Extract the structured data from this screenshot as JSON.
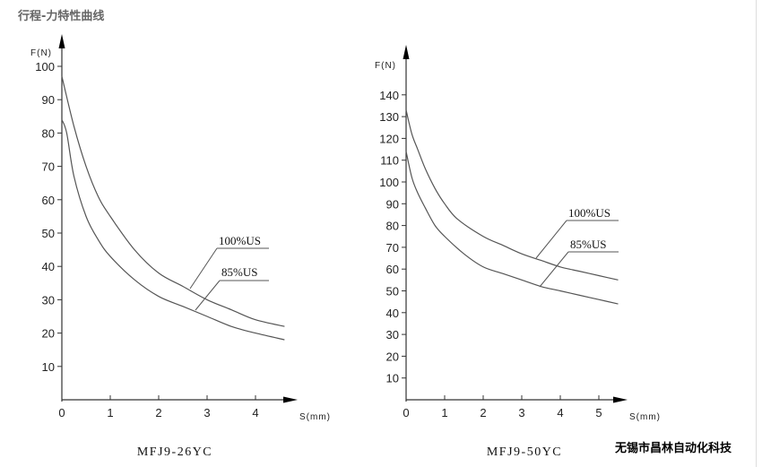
{
  "page_title": "行程-力特性曲线",
  "company": "无锡市昌林自动化科技",
  "chart_data": [
    {
      "type": "line",
      "caption": "MFJ9-26YC",
      "xlabel": "S(mm)",
      "ylabel": "F(N)",
      "xlim": [
        0,
        4.6
      ],
      "ylim": [
        0,
        100
      ],
      "xticks": [
        "0",
        "1",
        "2",
        "3",
        "4"
      ],
      "yticks": [
        "10",
        "20",
        "30",
        "40",
        "50",
        "60",
        "70",
        "80",
        "90",
        "100"
      ],
      "grid": false,
      "series": [
        {
          "name": "100%US",
          "x": [
            0,
            0.25,
            0.5,
            0.75,
            1,
            1.5,
            2,
            2.5,
            3,
            3.5,
            4,
            4.6
          ],
          "y": [
            97,
            82,
            70,
            61,
            55,
            45,
            38,
            34,
            30,
            27,
            24,
            22
          ]
        },
        {
          "name": "85%US",
          "x": [
            0,
            0.1,
            0.25,
            0.5,
            0.75,
            1,
            1.5,
            2,
            2.5,
            3,
            3.5,
            4,
            4.6
          ],
          "y": [
            84,
            80,
            67,
            55,
            48,
            43,
            36,
            31,
            28,
            25,
            22,
            20,
            18
          ]
        }
      ]
    },
    {
      "type": "line",
      "caption": "MFJ9-50YC",
      "xlabel": "S(mm)",
      "ylabel": "F(N)",
      "xlim": [
        0,
        5.5
      ],
      "ylim": [
        0,
        145
      ],
      "xticks": [
        "0",
        "1",
        "2",
        "3",
        "4",
        "5"
      ],
      "yticks": [
        "10",
        "20",
        "30",
        "40",
        "50",
        "60",
        "70",
        "80",
        "90",
        "100",
        "110",
        "120",
        "130",
        "140"
      ],
      "grid": false,
      "series": [
        {
          "name": "100%US",
          "x": [
            0,
            0.15,
            0.3,
            0.5,
            0.75,
            1,
            1.33,
            2,
            2.5,
            3,
            3.5,
            4,
            4.5,
            5,
            5.5
          ],
          "y": [
            133,
            122,
            115,
            106,
            97,
            90,
            83,
            75,
            71,
            67,
            64,
            61,
            59,
            57,
            55
          ]
        },
        {
          "name": "85%US",
          "x": [
            0,
            0.15,
            0.3,
            0.5,
            0.75,
            1,
            1.5,
            2,
            2.5,
            3,
            3.5,
            4,
            4.5,
            5,
            5.5
          ],
          "y": [
            114,
            102,
            95,
            88,
            80,
            75,
            67,
            61,
            58,
            55,
            52,
            50,
            48,
            46,
            44
          ]
        }
      ]
    }
  ]
}
